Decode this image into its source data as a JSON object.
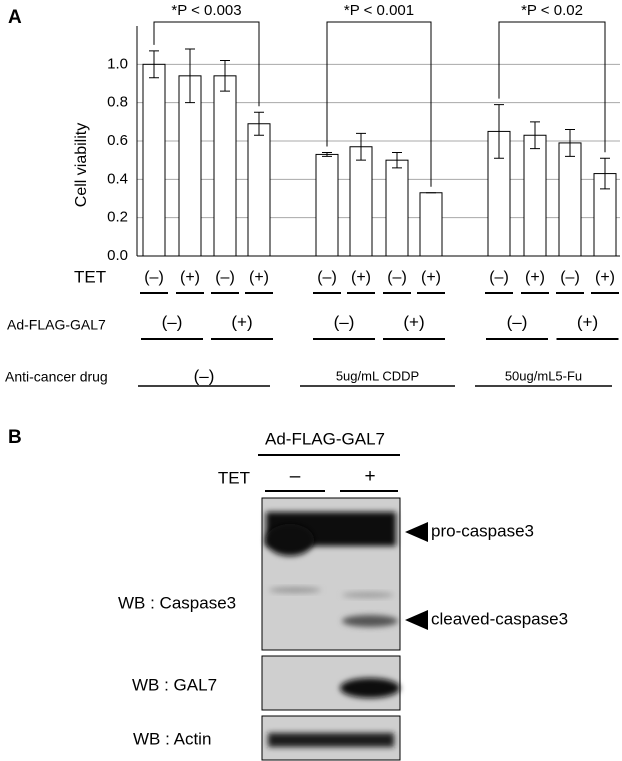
{
  "panel_labels": [
    "A",
    "B"
  ],
  "chart_data": {
    "type": "bar",
    "ylabel": "Cell viability",
    "categories": [
      "(–)",
      "(+)",
      "(–)",
      "(+)",
      "(–)",
      "(+)",
      "(–)",
      "(+)",
      "(–)",
      "(+)",
      "(–)",
      "(+)"
    ],
    "values": [
      1.0,
      0.94,
      0.94,
      0.69,
      0.53,
      0.57,
      0.5,
      0.33,
      0.65,
      0.63,
      0.59,
      0.43
    ],
    "errors": [
      0.07,
      0.14,
      0.08,
      0.06,
      0.01,
      0.07,
      0.04,
      0.0,
      0.14,
      0.07,
      0.07,
      0.08
    ],
    "color": "#ffffff",
    "ylim": [
      0,
      1.2
    ],
    "yticks": [
      {
        "value": 0,
        "label": "0.0"
      },
      0.2,
      0.4,
      0.6,
      0.8,
      {
        "value": 1,
        "label": "1.0"
      }
    ],
    "grid": true,
    "annotations": [
      "*P < 0.003",
      "*P < 0.001",
      "*P < 0.02"
    ],
    "row_labels": [
      "TET",
      "Ad-FLAG-GAL7",
      "Anti-cancer drug"
    ],
    "ad_labels": [
      "(–)",
      "(+)",
      "(–)",
      "(+)",
      "(–)",
      "(+)"
    ],
    "drug_labels": [
      "(–)",
      "5ug/mL CDDP",
      "50ug/mL5-Fu"
    ]
  },
  "blot": {
    "header": "Ad-FLAG-GAL7",
    "tet_label": "TET",
    "lanes": [
      "–",
      "+"
    ],
    "rows": [
      "WB : Caspase3",
      "WB : GAL7",
      "WB : Actin"
    ],
    "arrows": [
      "pro-caspase3",
      "cleaved-caspase3"
    ]
  }
}
